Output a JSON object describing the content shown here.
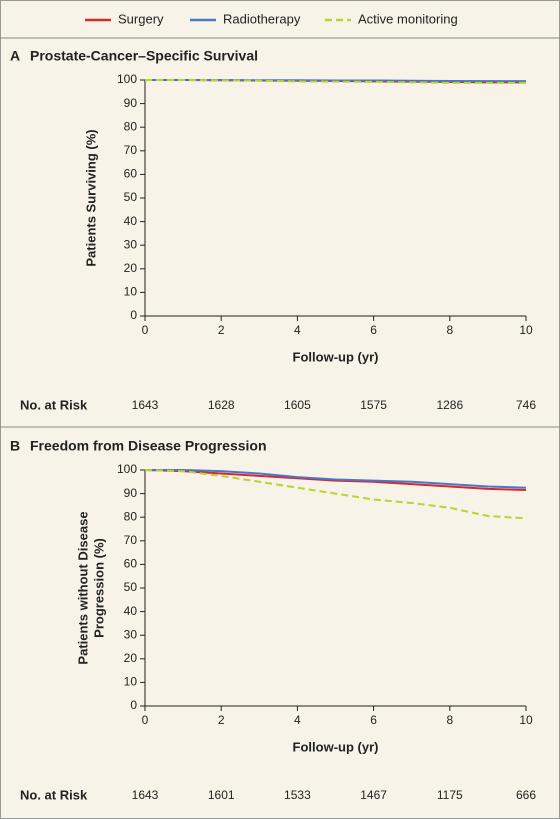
{
  "legend": [
    {
      "name": "Surgery",
      "color": "#d42a2a"
    },
    {
      "name": "Radiotherapy",
      "color": "#4a76c9"
    },
    {
      "name": "Active monitoring",
      "color": "#b6d433"
    }
  ],
  "chart_data": [
    {
      "type": "line",
      "label": "A",
      "title": "Prostate-Cancer–Specific Survival",
      "xlabel": "Follow-up (yr)",
      "ylabel": [
        "Patients Surviving (%)"
      ],
      "x": [
        0,
        1,
        2,
        3,
        4,
        5,
        6,
        7,
        8,
        9,
        10
      ],
      "series": [
        {
          "values": [
            100,
            100,
            99.9,
            99.8,
            99.7,
            99.6,
            99.4,
            99.3,
            99.2,
            99.0,
            99.0
          ]
        },
        {
          "values": [
            100,
            100,
            100,
            99.9,
            99.9,
            99.8,
            99.8,
            99.7,
            99.6,
            99.5,
            99.5
          ]
        },
        {
          "values": [
            100,
            100,
            99.9,
            99.7,
            99.4,
            99.3,
            99.2,
            99.0,
            98.8,
            98.8,
            98.8
          ],
          "dashed": true
        }
      ],
      "xlim": [
        0,
        10
      ],
      "xticks": [
        0,
        2,
        4,
        6,
        8,
        10
      ],
      "ylim": [
        0,
        100
      ],
      "yticks": [
        0,
        10,
        20,
        30,
        40,
        50,
        60,
        70,
        80,
        90,
        100
      ],
      "at_risk": {
        "label": "No. at Risk",
        "values": [
          1643,
          1628,
          1605,
          1575,
          1286,
          746
        ]
      }
    },
    {
      "type": "line",
      "label": "B",
      "title": "Freedom from Disease Progression",
      "xlabel": "Follow-up (yr)",
      "ylabel": [
        "Patients without Disease",
        "Progression (%)"
      ],
      "x": [
        0,
        1,
        2,
        3,
        4,
        5,
        6,
        7,
        8,
        9,
        10
      ],
      "series": [
        {
          "values": [
            100,
            99.5,
            98.5,
            97.5,
            96.5,
            95.5,
            95,
            94,
            93,
            92,
            91.5
          ]
        },
        {
          "values": [
            100,
            100,
            99.5,
            98.5,
            97,
            96,
            95.5,
            95,
            94,
            93,
            92.5
          ]
        },
        {
          "values": [
            100,
            99.5,
            97.5,
            95,
            92.5,
            90,
            87.5,
            86,
            84,
            80.5,
            79.5
          ],
          "dashed": true
        }
      ],
      "xlim": [
        0,
        10
      ],
      "xticks": [
        0,
        2,
        4,
        6,
        8,
        10
      ],
      "ylim": [
        0,
        100
      ],
      "yticks": [
        0,
        10,
        20,
        30,
        40,
        50,
        60,
        70,
        80,
        90,
        100
      ],
      "at_risk": {
        "label": "No. at Risk",
        "values": [
          1643,
          1601,
          1533,
          1467,
          1175,
          666
        ]
      }
    }
  ]
}
